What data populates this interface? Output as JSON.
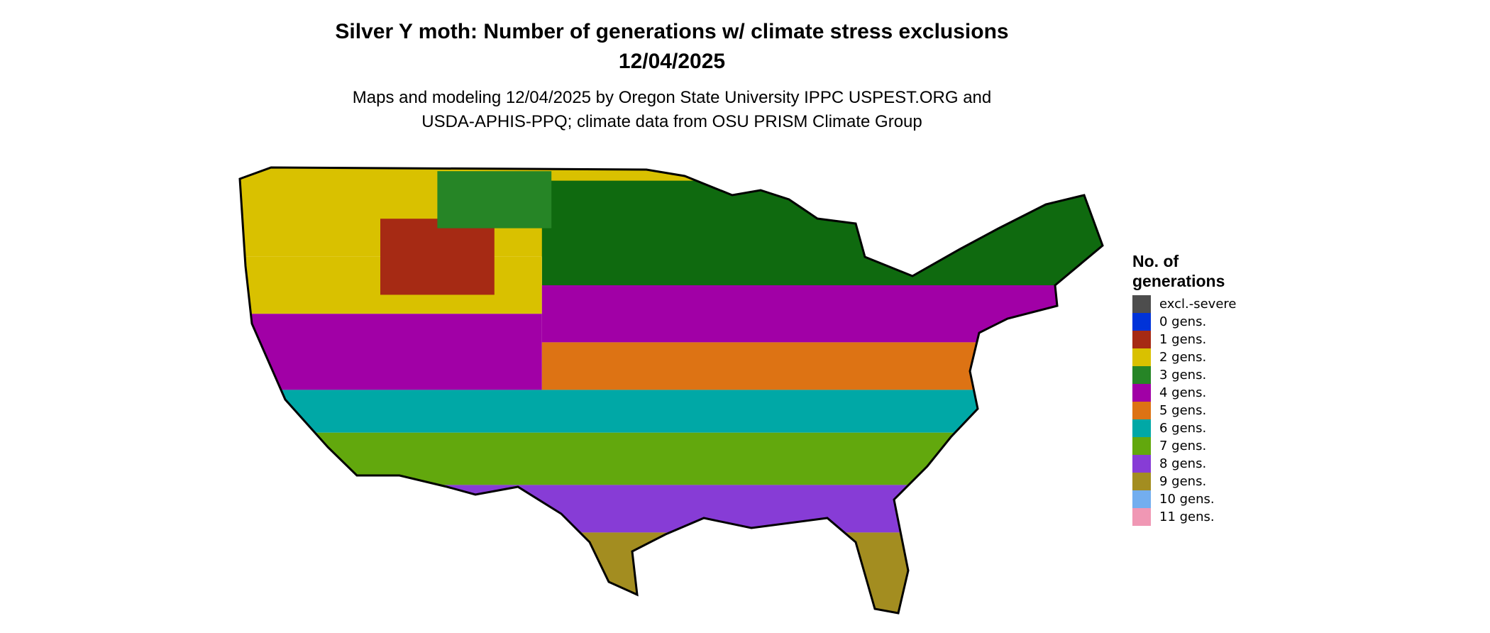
{
  "title": {
    "line1": "Silver Y moth: Number of generations w/ climate stress exclusions",
    "line2": "12/04/2025"
  },
  "subtitle": {
    "line1": "Maps and modeling 12/04/2025 by Oregon State University IPPC USPEST.ORG and",
    "line2": "USDA-APHIS-PPQ; climate data from OSU PRISM Climate Group"
  },
  "legend": {
    "title_line1": "No. of",
    "title_line2": "generations",
    "items": [
      {
        "label": "excl.-severe",
        "color": "#4d4d4d"
      },
      {
        "label": "0 gens.",
        "color": "#0033d9"
      },
      {
        "label": "1 gens.",
        "color": "#a62a14"
      },
      {
        "label": "2 gens.",
        "color": "#d9c100"
      },
      {
        "label": "3 gens.",
        "color": "#268526"
      },
      {
        "label": "4 gens.",
        "color": "#a100a6"
      },
      {
        "label": "5 gens.",
        "color": "#dd7314"
      },
      {
        "label": "6 gens.",
        "color": "#00a8a6"
      },
      {
        "label": "7 gens.",
        "color": "#62a80d"
      },
      {
        "label": "8 gens.",
        "color": "#873cd6"
      },
      {
        "label": "9 gens.",
        "color": "#a38d20"
      },
      {
        "label": "10 gens.",
        "color": "#73aeef"
      },
      {
        "label": "11 gens.",
        "color": "#f097b4"
      }
    ]
  }
}
